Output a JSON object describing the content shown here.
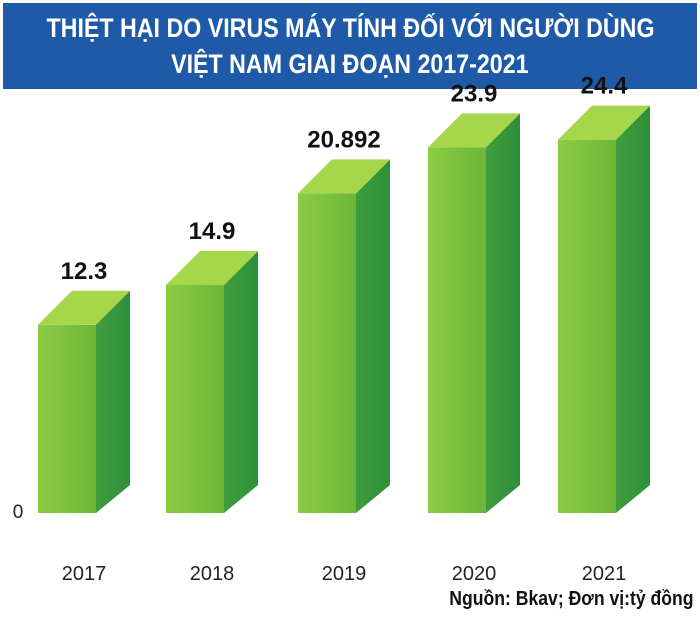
{
  "title": {
    "line1": "THIỆT HẠI DO VIRUS MÁY TÍNH ĐỐI VỚI NGƯỜI DÙNG",
    "line2": "VIỆT NAM GIAI ĐOẠN 2017-2021"
  },
  "source": "Nguồn: Bkav; Đơn vị:tỷ đồng",
  "colors": {
    "title_bg": "#1f5aa8",
    "bar_top": "#a6d64a",
    "bar_front": "#6cb637",
    "bar_side": "#2f8f3a"
  },
  "chart_data": {
    "type": "bar",
    "categories": [
      "2017",
      "2018",
      "2019",
      "2020",
      "2021"
    ],
    "values": [
      12.3,
      14.9,
      20.892,
      23.9,
      24.4
    ],
    "value_labels": [
      "12.3",
      "14.9",
      "20.892",
      "23.9",
      "24.4"
    ],
    "y_tick_labels": [
      "0"
    ],
    "ylim": [
      0,
      30
    ],
    "grid": false,
    "style": "3d"
  }
}
